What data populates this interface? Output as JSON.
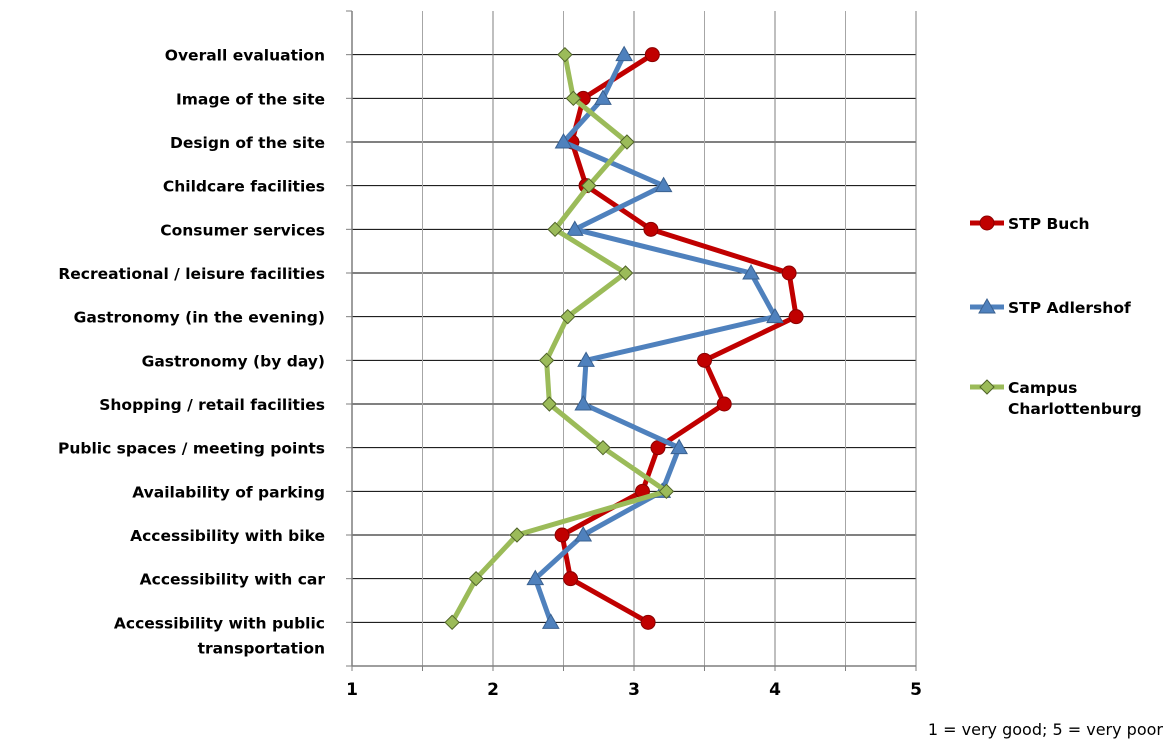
{
  "chart_data": {
    "type": "line",
    "orientation": "horizontal",
    "categories": [
      "Overall evaluation",
      "Image of the site",
      "Design of the site",
      "Childcare facilities",
      "Consumer services",
      "Recreational / leisure facilities",
      "Gastronomy (in the evening)",
      "Gastronomy (by day)",
      "Shopping / retail facilities",
      "Public spaces / meeting points",
      "Availability of parking",
      "Accessibility with bike",
      "Accessibility with car",
      "Accessibility with public transportation"
    ],
    "series": [
      {
        "name": "STP Buch",
        "color": "#c00000",
        "marker": "circle",
        "values": [
          3.13,
          2.64,
          2.56,
          2.66,
          3.12,
          4.1,
          4.15,
          3.5,
          3.64,
          3.17,
          3.06,
          2.49,
          2.55,
          3.1
        ]
      },
      {
        "name": "STP Adlershof",
        "color": "#4f81bd",
        "marker": "triangle",
        "values": [
          2.93,
          2.78,
          2.5,
          3.21,
          2.58,
          3.83,
          4.0,
          2.66,
          2.64,
          3.32,
          3.2,
          2.64,
          2.3,
          2.41
        ]
      },
      {
        "name": "Campus Charlottenburg",
        "legend_lines": [
          "Campus",
          "Charlottenburg"
        ],
        "color": "#9bbb59",
        "marker": "diamond",
        "values": [
          2.51,
          2.57,
          2.95,
          2.68,
          2.44,
          2.94,
          2.53,
          2.38,
          2.4,
          2.78,
          3.23,
          2.17,
          1.88,
          1.71
        ]
      }
    ],
    "xlim": [
      1,
      5
    ],
    "xticks": [
      "1",
      "2",
      "3",
      "4",
      "5"
    ],
    "x_minor_step": 0.5,
    "grid": true,
    "legend_position": "right",
    "note": "1 = very good; 5 = very poor"
  }
}
